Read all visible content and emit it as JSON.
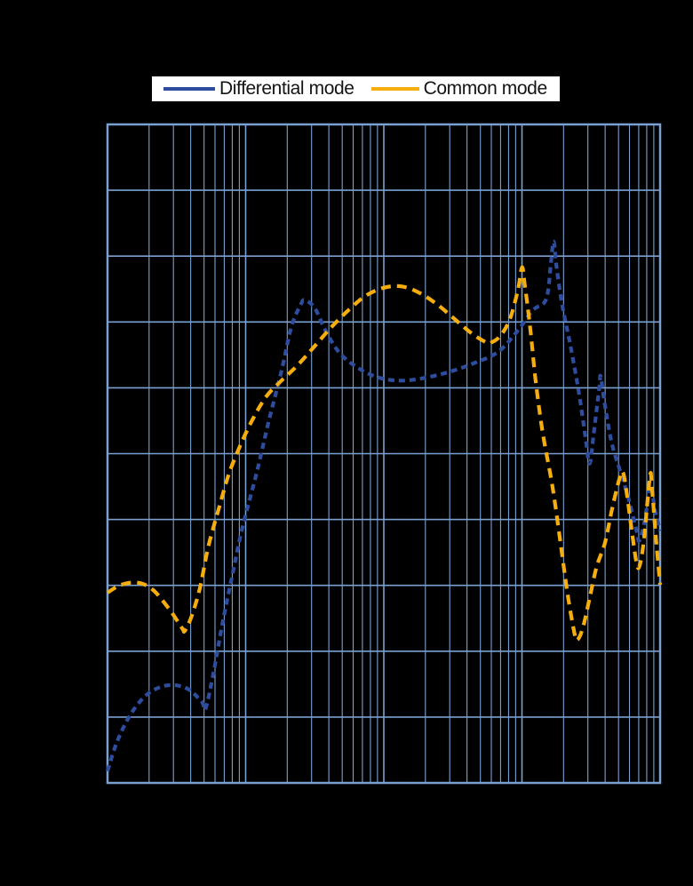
{
  "page": {
    "background": "#000000"
  },
  "legend": {
    "background": "#ffffff",
    "items": [
      {
        "label": "Differential mode"
      },
      {
        "label": "Common mode"
      }
    ]
  },
  "chart_data": {
    "type": "line",
    "title": "",
    "legend_position": "top",
    "plot_background": "#000000",
    "gridline_color": "#7AA1D2",
    "frame_color": "#7AA1D2",
    "x_axis": {
      "scale": "log",
      "decades": 4,
      "minor_gridlines": [
        2,
        3,
        4,
        5,
        6,
        7,
        8,
        9
      ],
      "tick_labels_visible": false
    },
    "y_axis": {
      "scale": "linear",
      "divisions": 10,
      "tick_labels_visible": false
    },
    "units_note": "axis tick labels are not visible in the image; x given as log-decade position 0-4, y as grid divisions 0-10 from bottom axis",
    "series": [
      {
        "name": "Differential mode",
        "color": "#2E4D9E",
        "dash": [
          7,
          5
        ],
        "legend_dash": "8 5",
        "points": [
          [
            0.0,
            0.18
          ],
          [
            0.07,
            0.63
          ],
          [
            0.17,
            1.05
          ],
          [
            0.29,
            1.35
          ],
          [
            0.43,
            1.48
          ],
          [
            0.57,
            1.44
          ],
          [
            0.68,
            1.24
          ],
          [
            0.71,
            1.13
          ],
          [
            0.77,
            1.7
          ],
          [
            0.83,
            2.4
          ],
          [
            0.9,
            3.12
          ],
          [
            0.97,
            3.82
          ],
          [
            1.07,
            4.63
          ],
          [
            1.12,
            5.07
          ],
          [
            1.17,
            5.52
          ],
          [
            1.26,
            6.26
          ],
          [
            1.33,
            6.92
          ],
          [
            1.4,
            7.27
          ],
          [
            1.43,
            7.33
          ],
          [
            1.5,
            7.21
          ],
          [
            1.58,
            6.86
          ],
          [
            1.68,
            6.53
          ],
          [
            1.8,
            6.32
          ],
          [
            1.94,
            6.17
          ],
          [
            2.1,
            6.11
          ],
          [
            2.27,
            6.14
          ],
          [
            2.47,
            6.24
          ],
          [
            2.66,
            6.38
          ],
          [
            2.83,
            6.55
          ],
          [
            2.97,
            6.87
          ],
          [
            3.08,
            7.18
          ],
          [
            3.16,
            7.29
          ],
          [
            3.19,
            7.48
          ],
          [
            3.21,
            7.91
          ],
          [
            3.23,
            8.22
          ],
          [
            3.25,
            7.84
          ],
          [
            3.29,
            7.27
          ],
          [
            3.35,
            6.65
          ],
          [
            3.41,
            5.95
          ],
          [
            3.46,
            5.25
          ],
          [
            3.49,
            4.85
          ],
          [
            3.52,
            5.32
          ],
          [
            3.56,
            6.01
          ],
          [
            3.57,
            6.17
          ],
          [
            3.6,
            5.74
          ],
          [
            3.65,
            5.16
          ],
          [
            3.71,
            4.74
          ],
          [
            3.77,
            4.33
          ],
          [
            3.83,
            3.82
          ],
          [
            3.85,
            3.68
          ],
          [
            3.89,
            4.0
          ],
          [
            3.92,
            4.44
          ],
          [
            3.94,
            4.49
          ],
          [
            3.96,
            4.17
          ],
          [
            4.0,
            3.83
          ]
        ]
      },
      {
        "name": "Common mode",
        "color": "#F5AE0E",
        "dash": [
          11,
          7
        ],
        "legend_dash": "14 9",
        "points": [
          [
            0.0,
            2.89
          ],
          [
            0.1,
            3.01
          ],
          [
            0.22,
            3.04
          ],
          [
            0.33,
            2.93
          ],
          [
            0.45,
            2.63
          ],
          [
            0.54,
            2.35
          ],
          [
            0.56,
            2.31
          ],
          [
            0.61,
            2.54
          ],
          [
            0.67,
            2.97
          ],
          [
            0.73,
            3.59
          ],
          [
            0.81,
            4.2
          ],
          [
            0.88,
            4.7
          ],
          [
            0.96,
            5.12
          ],
          [
            1.05,
            5.52
          ],
          [
            1.15,
            5.87
          ],
          [
            1.26,
            6.11
          ],
          [
            1.37,
            6.33
          ],
          [
            1.49,
            6.61
          ],
          [
            1.62,
            6.92
          ],
          [
            1.75,
            7.19
          ],
          [
            1.87,
            7.4
          ],
          [
            2.0,
            7.52
          ],
          [
            2.13,
            7.54
          ],
          [
            2.26,
            7.44
          ],
          [
            2.39,
            7.26
          ],
          [
            2.52,
            7.03
          ],
          [
            2.64,
            6.82
          ],
          [
            2.74,
            6.69
          ],
          [
            2.77,
            6.68
          ],
          [
            2.84,
            6.78
          ],
          [
            2.91,
            7.03
          ],
          [
            2.97,
            7.48
          ],
          [
            3.0,
            7.83
          ],
          [
            3.02,
            7.57
          ],
          [
            3.06,
            6.9
          ],
          [
            3.1,
            6.09
          ],
          [
            3.15,
            5.32
          ],
          [
            3.22,
            4.51
          ],
          [
            3.28,
            3.63
          ],
          [
            3.33,
            2.87
          ],
          [
            3.38,
            2.27
          ],
          [
            3.4,
            2.17
          ],
          [
            3.44,
            2.35
          ],
          [
            3.49,
            2.81
          ],
          [
            3.54,
            3.28
          ],
          [
            3.6,
            3.64
          ],
          [
            3.65,
            4.14
          ],
          [
            3.7,
            4.58
          ],
          [
            3.73,
            4.72
          ],
          [
            3.76,
            4.37
          ],
          [
            3.8,
            3.75
          ],
          [
            3.83,
            3.33
          ],
          [
            3.85,
            3.29
          ],
          [
            3.88,
            3.64
          ],
          [
            3.91,
            4.31
          ],
          [
            3.93,
            4.7
          ],
          [
            3.94,
            4.51
          ],
          [
            3.97,
            3.71
          ],
          [
            4.0,
            3.01
          ]
        ]
      }
    ]
  }
}
